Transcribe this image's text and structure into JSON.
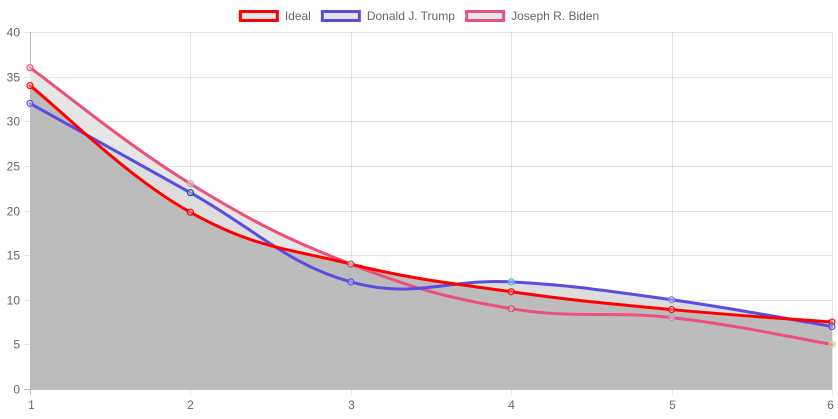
{
  "chart_data": {
    "type": "line",
    "x": [
      1,
      2,
      3,
      4,
      5,
      6
    ],
    "xlim": [
      1,
      6
    ],
    "ylim": [
      0,
      40
    ],
    "yticks": [
      0,
      5,
      10,
      15,
      20,
      25,
      30,
      35,
      40
    ],
    "grid": true,
    "legend_position": "top-center",
    "series": [
      {
        "name": "Ideal",
        "color": "#ff0000",
        "values": [
          34,
          19.8,
          14,
          10.9,
          8.9,
          7.5
        ],
        "fill": "#bcbcbc",
        "point_colors": [
          "#ff0000",
          "#ff0000",
          "#333333",
          "#ff0000",
          "#ff0000",
          "#ff0000"
        ]
      },
      {
        "name": "Donald J. Trump",
        "color": "#5b4de0",
        "values": [
          32,
          22,
          12,
          12,
          10,
          7
        ],
        "fill": "#dddddd",
        "point_colors": [
          "#5b4de0",
          "#1a5a80",
          "#5b4de0",
          "#40c0d0",
          "#7090c0",
          "#5b4de0"
        ]
      },
      {
        "name": "Joseph R. Biden",
        "color": "#e9507a",
        "values": [
          36,
          23,
          14,
          9,
          8,
          5
        ],
        "fill": "#e6e6e6",
        "point_colors": [
          "#e9507a",
          "#b0b0b0",
          "#b55a6a",
          "#b55a6a",
          "#9a9ad0",
          "#d0d070"
        ]
      }
    ]
  }
}
